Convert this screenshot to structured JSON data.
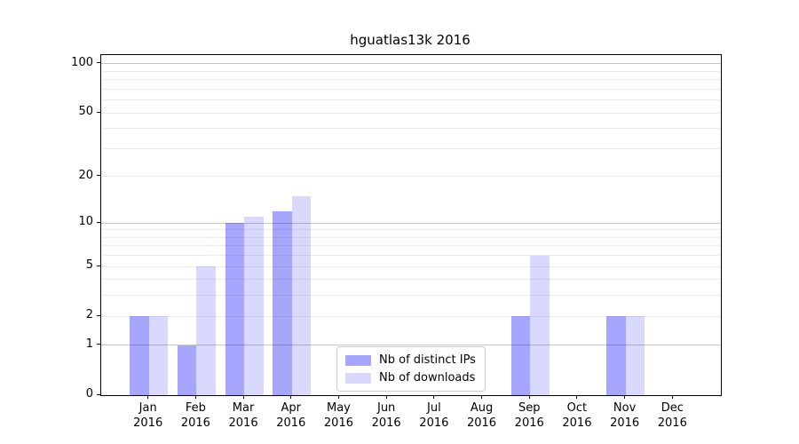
{
  "chart_data": {
    "type": "bar",
    "title": "hguatlas13k 2016",
    "categories": [
      "Jan",
      "Feb",
      "Mar",
      "Apr",
      "May",
      "Jun",
      "Jul",
      "Aug",
      "Sep",
      "Oct",
      "Nov",
      "Dec"
    ],
    "category_sublabel": "2016",
    "series": [
      {
        "name": "Nb of distinct IPs",
        "color": "#0000ff",
        "alpha": 0.35,
        "values": [
          2,
          1,
          10,
          12,
          0,
          0,
          0,
          0,
          2,
          0,
          2,
          0
        ]
      },
      {
        "name": "Nb of downloads",
        "color": "#0000ff",
        "alpha": 0.15,
        "values": [
          2,
          5,
          11,
          15,
          0,
          0,
          0,
          0,
          6,
          0,
          2,
          0
        ]
      }
    ],
    "xlabel": "",
    "ylabel": "",
    "scale": "log1p",
    "ylim": [
      0,
      113
    ],
    "y_tick_values": [
      0,
      1,
      2,
      5,
      10,
      20,
      50,
      100
    ],
    "y_tick_labels": [
      "0",
      "1",
      "2",
      "5",
      "10",
      "20",
      "50",
      "100"
    ],
    "y_major_gridlines": [
      1,
      10,
      100
    ],
    "y_minor_gridlines": [
      2,
      3,
      4,
      5,
      6,
      7,
      8,
      9,
      20,
      30,
      40,
      50,
      60,
      70,
      80,
      90
    ],
    "grid": "on",
    "legend_position": "inside-bottom-center"
  }
}
